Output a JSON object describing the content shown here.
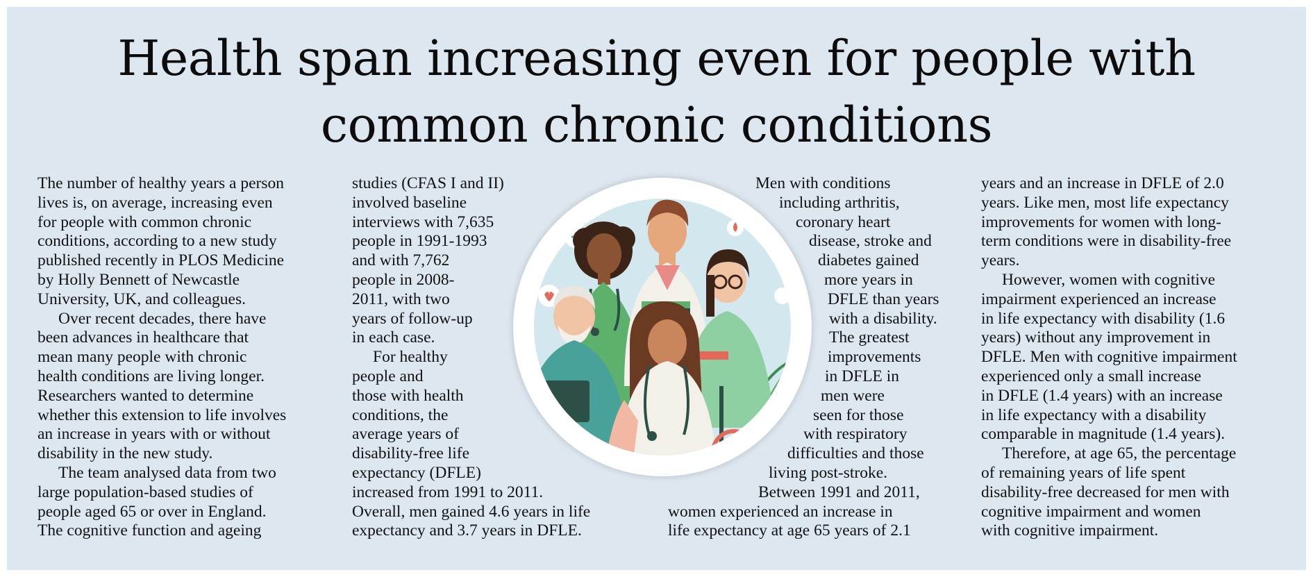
{
  "headline": {
    "line1": "Health span increasing even for people with",
    "line2": "common chronic conditions"
  },
  "columns": [
    [
      "The number of healthy years a person",
      "lives is, on average, increasing even",
      "for people with common chronic",
      "conditions, according to a new study",
      "published recently in PLOS Medicine",
      "by Holly Bennett of Newcastle",
      "University, UK, and colleagues.",
      "Over recent decades, there have",
      "been advances in healthcare that",
      "mean many people with chronic",
      "health conditions are living longer.",
      "Researchers wanted to determine",
      "whether this extension to life involves",
      "an increase in years with or without",
      "disability in the new study.",
      "The team analysed data from two",
      "large population-based studies of",
      "people aged 65 or over in England.",
      "The cognitive function and ageing"
    ],
    [
      "studies (CFAS I and II)",
      "involved baseline",
      "interviews with 7,635",
      "people in 1991-1993",
      "and with 7,762",
      "people in 2008-",
      "2011, with two",
      "years of follow-up",
      "in each case.",
      "For healthy",
      "people and",
      "those with health",
      "conditions, the",
      "average years of",
      "disability-free life",
      "expectancy (DFLE)",
      "increased from 1991 to 2011.",
      "Overall, men gained 4.6 years in life",
      "expectancy and 3.7 years in DFLE."
    ],
    [
      "Men with conditions",
      "including arthritis,",
      "coronary heart",
      "disease, stroke and",
      "diabetes gained",
      "more years in",
      "DFLE than years",
      "with a disability.",
      "The greatest",
      "improvements",
      "in DFLE in",
      "men were",
      "seen for those",
      "with respiratory",
      "difficulties and those",
      "living post-stroke.",
      "Between 1991 and 2011,",
      "women experienced an increase in",
      "life expectancy at age 65 years of 2.1"
    ],
    [
      "years and an increase in DFLE of 2.0",
      "years. Like men, most life expectancy",
      "improvements for women with long-",
      "term conditions were in disability-free",
      "years.",
      "However, women with cognitive",
      "impairment experienced an increase",
      "in life expectancy with disability (1.6",
      "years) without any improvement in",
      "DFLE. Men with cognitive impairment",
      "experienced only a small increase",
      "in DFLE (1.4 years) with an increase",
      "in life expectancy with a disability",
      "comparable in magnitude (1.4 years).",
      "Therefore, at age 65, the percentage",
      "of remaining years of life spent",
      "disability-free decreased for men with",
      "cognitive impairment and women",
      "with cognitive impairment."
    ]
  ],
  "colors": {
    "panel_background": "#dde7ef",
    "illustration_sky": "#d2e7ee",
    "scrubs_green": "#5db16d",
    "scrubs_teal": "#49a29a",
    "coat_white": "#f3efe9"
  }
}
